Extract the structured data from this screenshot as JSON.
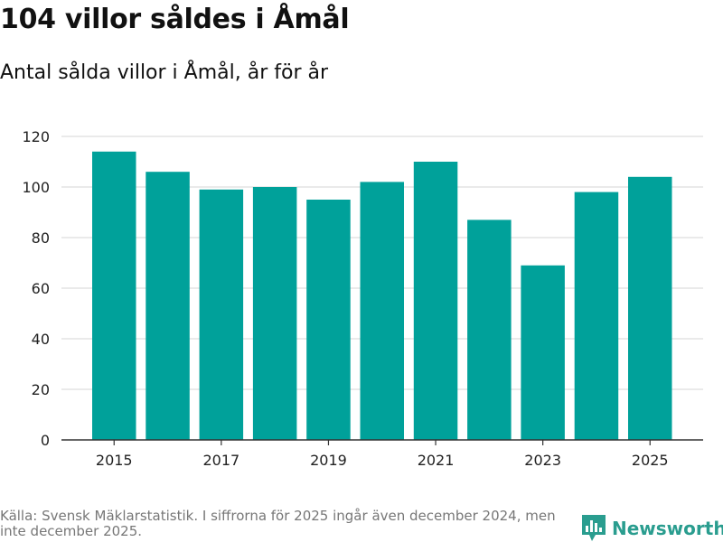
{
  "title": "104 villor såldes i Åmål",
  "subtitle": "Antal sålda villor i Åmål, år för år",
  "source": "Källa: Svensk Mäklarstatistik. I siffrorna för 2025 ingår även december 2024, men inte december 2025.",
  "brand": {
    "name": "Newsworthy",
    "logo_icon": "bar-chart-logo-icon"
  },
  "colors": {
    "bar": "#00a19a",
    "grid": "#dddddd",
    "axis": "#333333",
    "brand": "#2a9d8f"
  },
  "chart_data": {
    "type": "bar",
    "title": "104 villor såldes i Åmål",
    "subtitle": "Antal sålda villor i Åmål, år för år",
    "xlabel": "",
    "ylabel": "",
    "categories": [
      "2015",
      "2016",
      "2017",
      "2018",
      "2019",
      "2020",
      "2021",
      "2022",
      "2023",
      "2024",
      "2025"
    ],
    "values": [
      114,
      106,
      99,
      100,
      95,
      102,
      110,
      87,
      69,
      98,
      104
    ],
    "x_tick_labels": [
      "2015",
      "2017",
      "2019",
      "2021",
      "2023",
      "2025"
    ],
    "y_ticks": [
      0,
      20,
      40,
      60,
      80,
      100,
      120
    ],
    "ylim": [
      0,
      120
    ],
    "grid": true,
    "legend": "none"
  }
}
